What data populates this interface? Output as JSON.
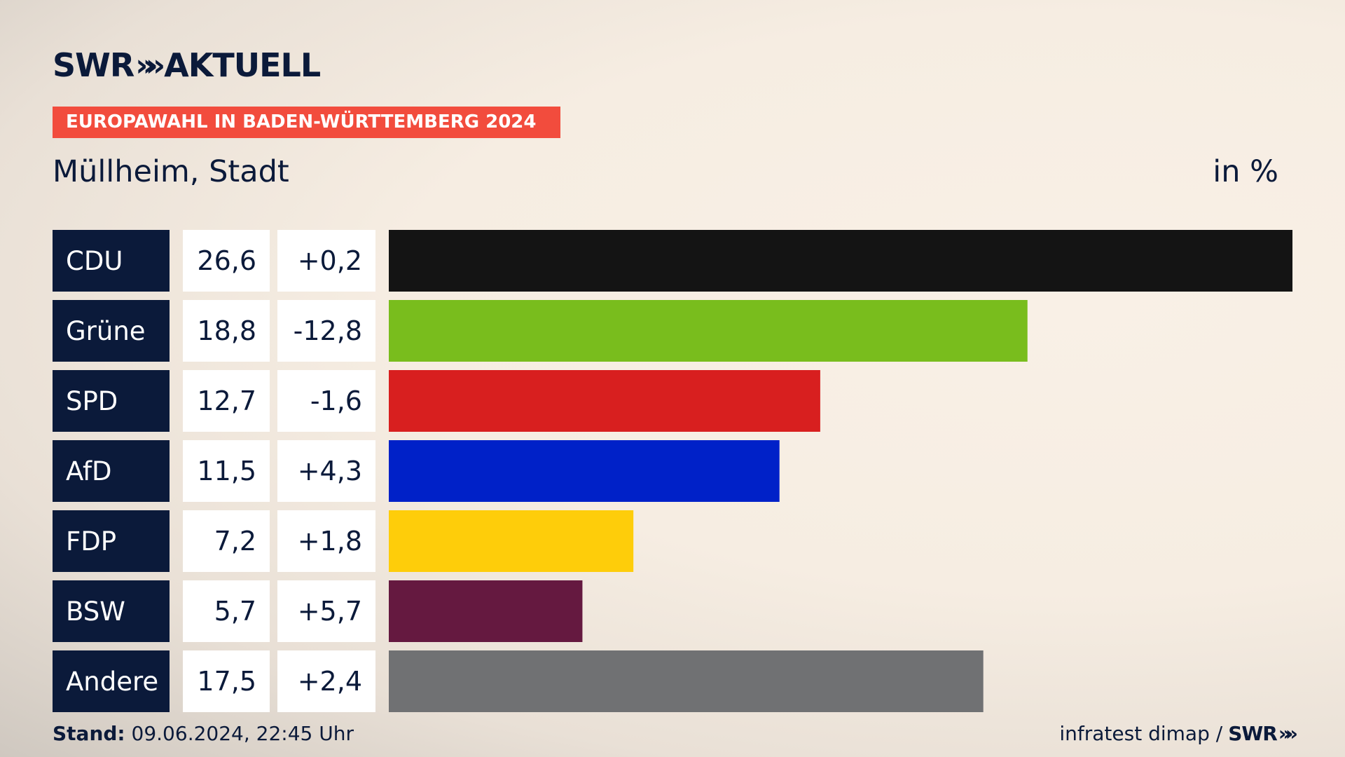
{
  "header": {
    "logo_text": "SWR",
    "logo_chevrons": "»",
    "logo_suffix": "AKTUELL",
    "banner": "EUROPAWAHL IN BADEN-WÜRTTEMBERG 2024",
    "location": "Müllheim, Stadt",
    "unit": "in %"
  },
  "footer": {
    "stand_label": "Stand:",
    "stand_value": "09.06.2024, 22:45 Uhr",
    "source": "infratest dimap / ",
    "source_logo": "SWR",
    "source_chevrons": "»"
  },
  "colors": {
    "label_bg": "#0b1a3a",
    "value_bg": "#ffffff",
    "banner": "#f24c3d"
  },
  "chart_data": {
    "type": "bar",
    "orientation": "horizontal",
    "title": "Müllheim, Stadt",
    "unit": "in %",
    "categories": [
      "CDU",
      "Grüne",
      "SPD",
      "AfD",
      "FDP",
      "BSW",
      "Andere"
    ],
    "values": [
      26.6,
      18.8,
      12.7,
      11.5,
      7.2,
      5.7,
      17.5
    ],
    "value_labels": [
      "26,6",
      "18,8",
      "12,7",
      "11,5",
      "7,2",
      "5,7",
      "17,5"
    ],
    "changes": [
      "+0,2",
      "-12,8",
      "-1,6",
      "+4,3",
      "+1,8",
      "+5,7",
      "+2,4"
    ],
    "bar_colors": [
      "#141414",
      "#79bd1d",
      "#d81f1f",
      "#0021c8",
      "#fecd0a",
      "#651940",
      "#707173"
    ],
    "xlim": [
      0,
      26.6
    ]
  }
}
